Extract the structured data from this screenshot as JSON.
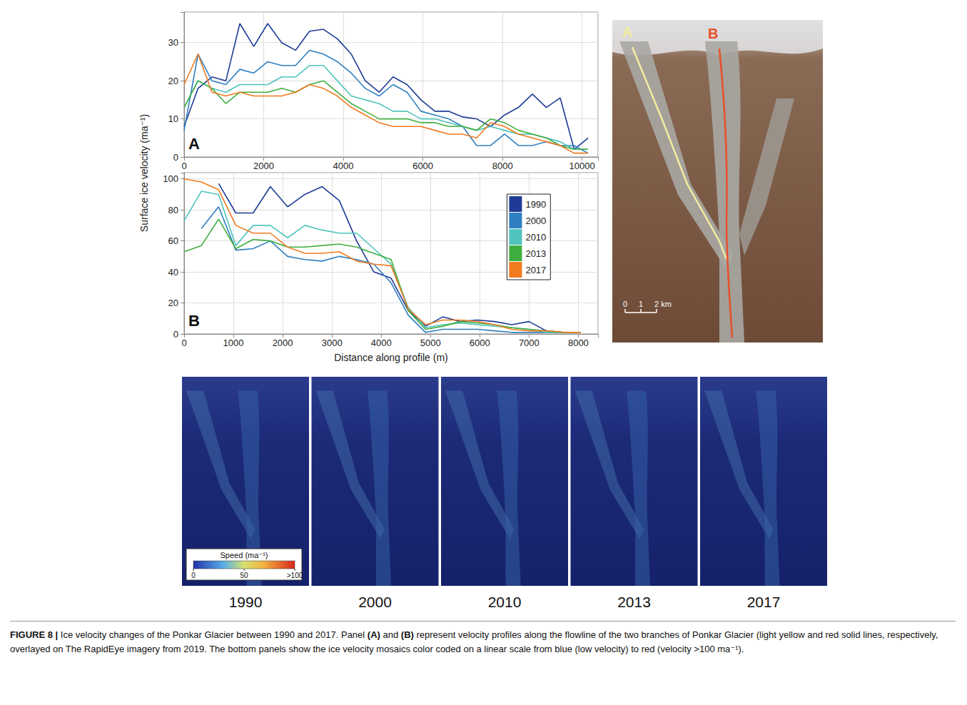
{
  "chart_data": [
    {
      "type": "line",
      "title": "A",
      "ylabel": "Surface ice velocity (ma⁻¹)",
      "x": [
        0,
        350,
        700,
        1050,
        1400,
        1750,
        2100,
        2450,
        2800,
        3150,
        3500,
        3850,
        4200,
        4550,
        4900,
        5250,
        5600,
        5950,
        6300,
        6650,
        7000,
        7350,
        7700,
        8050,
        8400,
        8750,
        9100,
        9450,
        9800,
        10150
      ],
      "series": [
        {
          "name": "1990",
          "color": "#1f3b96",
          "values": [
            8,
            18,
            21,
            20,
            35,
            29,
            35,
            30,
            28,
            33,
            33.5,
            31,
            27,
            20,
            17,
            21,
            19,
            15,
            12,
            12,
            10.5,
            10,
            8,
            11,
            13,
            16.5,
            13,
            15.5,
            2,
            5
          ]
        },
        {
          "name": "2000",
          "color": "#2f7fc1",
          "values": [
            7,
            27,
            20,
            19,
            23,
            22,
            25,
            24,
            24,
            28,
            27,
            25,
            22,
            18,
            16,
            19,
            17,
            12,
            11,
            10,
            8,
            3,
            3,
            6,
            3,
            3,
            4,
            3,
            3,
            1
          ]
        },
        {
          "name": "2010",
          "color": "#4fc4bc",
          "values": [
            13,
            20,
            18,
            17,
            19,
            19,
            19,
            21,
            21,
            24,
            24,
            20,
            16,
            15,
            14,
            12,
            12,
            10,
            10,
            9,
            8,
            7,
            8,
            7,
            6,
            6,
            5,
            4,
            2,
            2
          ]
        },
        {
          "name": "2013",
          "color": "#3fae3f",
          "values": [
            13,
            20,
            18,
            14,
            17,
            17,
            17,
            18,
            17,
            19,
            20,
            17,
            14,
            12,
            10,
            10,
            10,
            9,
            9,
            8,
            8,
            7,
            10,
            9,
            7,
            6,
            5,
            3,
            2,
            2
          ]
        },
        {
          "name": "2017",
          "color": "#f07a20",
          "values": [
            19,
            27,
            17,
            16,
            17,
            16,
            16,
            16,
            17,
            19,
            18,
            16,
            13,
            11,
            9,
            8,
            8,
            8,
            7,
            6,
            6,
            5,
            9,
            8,
            6,
            5,
            4,
            3,
            1,
            1
          ]
        }
      ],
      "xlim": [
        0,
        10400
      ],
      "xticks": [
        0,
        2000,
        4000,
        6000,
        8000,
        10000
      ],
      "ylim": [
        0,
        38
      ],
      "yticks": [
        0,
        10,
        20,
        30
      ],
      "grid": true
    },
    {
      "type": "line",
      "title": "B",
      "xlabel": "Distance along profile (m)",
      "x": [
        0,
        350,
        700,
        1050,
        1400,
        1750,
        2100,
        2450,
        2800,
        3150,
        3500,
        3850,
        4200,
        4550,
        4900,
        5250,
        5600,
        5950,
        6300,
        6650,
        7000,
        7350,
        7700,
        8050
      ],
      "series": [
        {
          "name": "1990",
          "color": "#1f3b96",
          "values": [
            null,
            null,
            97,
            78,
            78,
            95,
            82,
            90,
            95,
            86,
            60,
            40,
            36,
            15,
            5,
            11,
            8,
            9,
            8,
            6,
            8,
            2,
            1,
            1
          ]
        },
        {
          "name": "2000",
          "color": "#2f7fc1",
          "values": [
            null,
            68,
            82,
            54,
            55,
            60,
            50,
            48,
            47,
            50,
            48,
            45,
            33,
            12,
            1,
            3,
            3,
            3,
            2,
            1,
            1,
            1,
            1,
            1
          ]
        },
        {
          "name": "2010",
          "color": "#4fc4bc",
          "values": [
            73,
            92,
            90,
            57,
            70,
            70,
            62,
            70,
            67,
            65,
            65,
            55,
            45,
            17,
            4,
            6,
            7,
            6,
            5,
            4,
            3,
            1,
            1,
            1
          ]
        },
        {
          "name": "2013",
          "color": "#3fae3f",
          "values": [
            53,
            57,
            74,
            55,
            61,
            60,
            56,
            56,
            57,
            58,
            56,
            52,
            48,
            15,
            3,
            5,
            8,
            7,
            6,
            4,
            3,
            2,
            1,
            1
          ]
        },
        {
          "name": "2017",
          "color": "#f07a20",
          "values": [
            100,
            98,
            93,
            70,
            65,
            65,
            56,
            52,
            52,
            53,
            47,
            45,
            44,
            16,
            6,
            9,
            9,
            8,
            6,
            3,
            2,
            2,
            1,
            1
          ]
        }
      ],
      "xlim": [
        0,
        8400
      ],
      "xticks": [
        0,
        1000,
        2000,
        3000,
        4000,
        5000,
        6000,
        7000,
        8000
      ],
      "ylim": [
        0,
        104
      ],
      "yticks": [
        0,
        20,
        40,
        60,
        80,
        100
      ],
      "grid": true,
      "legend": "right"
    }
  ],
  "map": {
    "labels": [
      {
        "text": "A",
        "color": "#f3eca0"
      },
      {
        "text": "B",
        "color": "#e8502a"
      }
    ],
    "scale": {
      "ticks": [
        0,
        1,
        {
          "value": 2,
          "label": "2 km"
        }
      ]
    }
  },
  "mosaics": {
    "years": [
      "1990",
      "2000",
      "2010",
      "2013",
      "2017"
    ],
    "colorbar": {
      "title": "Speed (ma⁻¹)",
      "range": [
        0,
        100
      ],
      "ticks": [
        0,
        50,
        {
          "value": 100,
          "label": ">100"
        }
      ]
    }
  },
  "caption": {
    "label": "FIGURE 8 |",
    "text": "Ice velocity changes of the Ponkar Glacier between 1990 and 2017. Panel (A) and (B) represent velocity profiles along the flowline of the two branches of Ponkar Glacier (light yellow and red solid lines, respectively, overlayed on The RapidEye imagery from 2019. The bottom panels show the ice velocity mosaics color coded on a linear scale from blue (low velocity) to red (velocity >100 ma⁻¹)."
  }
}
